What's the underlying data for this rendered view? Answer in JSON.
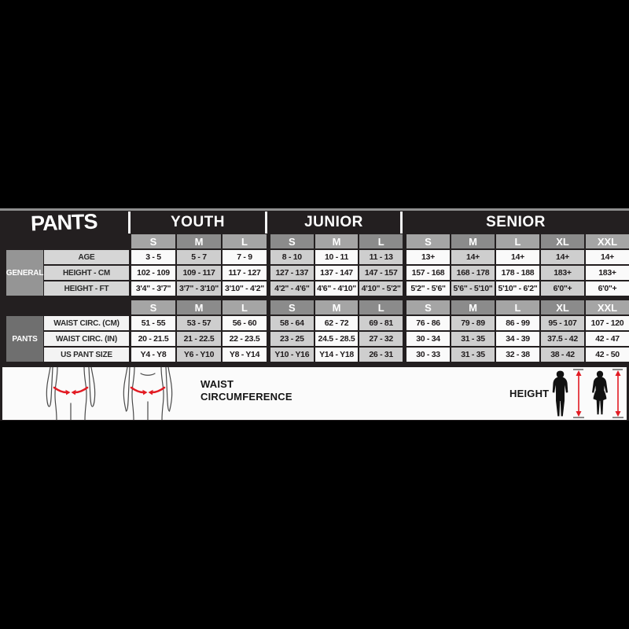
{
  "chart_data": {
    "type": "table",
    "title": "PANTS",
    "column_groups": [
      {
        "label": "YOUTH",
        "span": 3
      },
      {
        "label": "JUNIOR",
        "span": 3
      },
      {
        "label": "SENIOR",
        "span": 5
      }
    ],
    "columns": [
      "S",
      "M",
      "L",
      "S",
      "M",
      "L",
      "S",
      "M",
      "L",
      "XL",
      "XXL"
    ],
    "row_groups": [
      {
        "label": "GENERAL",
        "rows": [
          {
            "label": "AGE",
            "values": [
              "3 - 5",
              "5 - 7",
              "7 - 9",
              "8 - 10",
              "10 - 11",
              "11 - 13",
              "13+",
              "14+",
              "14+",
              "14+",
              "14+"
            ]
          },
          {
            "label": "HEIGHT - CM",
            "values": [
              "102 - 109",
              "109 - 117",
              "117 - 127",
              "127 - 137",
              "137 - 147",
              "147 - 157",
              "157 - 168",
              "168 - 178",
              "178 - 188",
              "183+",
              "183+"
            ]
          },
          {
            "label": "HEIGHT - FT",
            "values": [
              "3'4\" - 3'7\"",
              "3'7\" - 3'10\"",
              "3'10\" - 4'2\"",
              "4'2\" - 4'6\"",
              "4'6\" - 4'10\"",
              "4'10\" - 5'2\"",
              "5'2\" - 5'6\"",
              "5'6\" - 5'10\"",
              "5'10\" - 6'2\"",
              "6'0\"+",
              "6'0\"+"
            ]
          }
        ]
      },
      {
        "label": "PANTS",
        "rows": [
          {
            "label": "WAIST CIRC. (CM)",
            "values": [
              "51 - 55",
              "53 - 57",
              "56 - 60",
              "58 - 64",
              "62 - 72",
              "69 - 81",
              "76 - 86",
              "79 - 89",
              "86 - 99",
              "95 - 107",
              "107 - 120"
            ]
          },
          {
            "label": "WAIST CIRC. (IN)",
            "values": [
              "20 - 21.5",
              "21 - 22.5",
              "22 - 23.5",
              "23 - 25",
              "24.5 - 28.5",
              "27 - 32",
              "30 - 34",
              "31 - 35",
              "34 - 39",
              "37.5 - 42",
              "42 - 47"
            ]
          },
          {
            "label": "US PANT SIZE",
            "values": [
              "Y4 - Y8",
              "Y6 - Y10",
              "Y8 - Y14",
              "Y10 - Y16",
              "Y14 - Y18",
              "26 - 31",
              "30 - 33",
              "31 - 35",
              "32 - 38",
              "38 - 42",
              "42 - 50"
            ]
          }
        ]
      }
    ],
    "layout_hints": {
      "grid": true,
      "alternating_columns": true
    }
  },
  "legend": {
    "waist_label": "WAIST CIRCUMFERENCE",
    "height_label": "HEIGHT"
  },
  "colors": {
    "accent_red": "#e21b23",
    "table_background": "#231f20",
    "cell_white": "#fafafa",
    "cell_gray": "#cecece",
    "header_gray_light": "#a5a5a5",
    "header_gray_dark": "#8b8b8b"
  }
}
